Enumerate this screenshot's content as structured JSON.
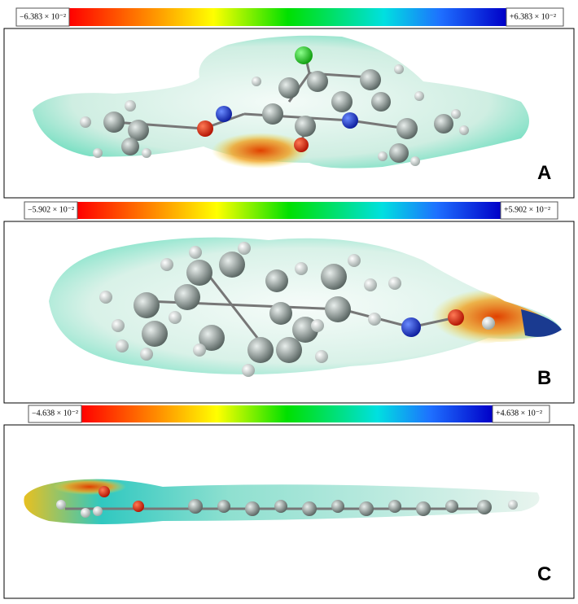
{
  "panels": [
    {
      "label": "A",
      "scale": {
        "min": "−6.383 × 10⁻²",
        "max": "+6.383 × 10⁻²"
      }
    },
    {
      "label": "B",
      "scale": {
        "min": "−5.902 × 10⁻²",
        "max": "+5.902 × 10⁻²"
      }
    },
    {
      "label": "C",
      "scale": {
        "min": "−4.638 × 10⁻²",
        "max": "+4.638 × 10⁻²"
      }
    }
  ]
}
